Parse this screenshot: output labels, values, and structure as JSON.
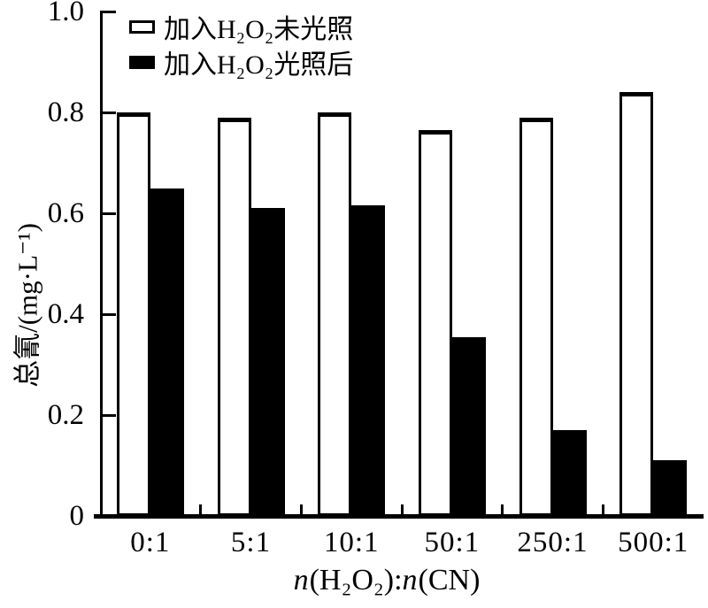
{
  "background": "#ffffff",
  "foreground": "#000000",
  "chart_data": {
    "type": "bar",
    "title": "",
    "categories": [
      "0:1",
      "5:1",
      "10:1",
      "50:1",
      "250:1",
      "500:1"
    ],
    "series": [
      {
        "name": "加入H₂O₂未光照",
        "fill": "#ffffff",
        "outline": "#000000",
        "values": [
          0.8,
          0.79,
          0.8,
          0.765,
          0.79,
          0.84
        ]
      },
      {
        "name": "加入H₂O₂光照后",
        "fill": "#000000",
        "outline": "#000000",
        "values": [
          0.65,
          0.61,
          0.615,
          0.355,
          0.17,
          0.11
        ]
      }
    ],
    "xlabel": "n(H₂O₂):n(CN)",
    "xlabel_parts": [
      "n",
      "(H₂O₂)",
      ":",
      "n",
      "(CN)"
    ],
    "ylabel": "总氰/(mg·L⁻¹)",
    "ylim": [
      0,
      1.0
    ],
    "yticks": [
      0,
      0.2,
      0.4,
      0.6,
      0.8,
      1.0
    ],
    "ytick_labels": [
      "0",
      "0.2",
      "0.4",
      "0.6",
      "0.8",
      "1.0"
    ],
    "grid": false,
    "legend_position": "top-left-inside"
  }
}
